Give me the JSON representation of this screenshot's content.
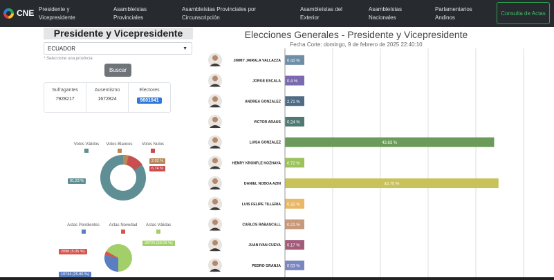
{
  "nav": {
    "logo": "CNE",
    "items": [
      {
        "label": "Presidente y Vicepresidente"
      },
      {
        "label": "Asambleístas Provinciales"
      },
      {
        "label": "Asambleístas Provinciales por Circunscripción"
      },
      {
        "label": "Asambleístas del Exterior"
      },
      {
        "label": "Asambleístas Nacionales"
      },
      {
        "label": "Parlamentarios Andinos"
      }
    ],
    "button": "Consulta de Actas"
  },
  "panel": {
    "title": "Presidente y Vicepresidente",
    "select_value": "ECUADOR",
    "hint": "* Seleccione una provincia",
    "search_label": "Buscar",
    "stats": {
      "sufragantes_label": "Sufragantes",
      "sufragantes": "7928217",
      "ausentismo_label": "Ausentismo",
      "ausentismo": "1672824",
      "electores_label": "Electores",
      "electores": "9601041"
    }
  },
  "donut": {
    "legend": [
      {
        "label": "Votos Válidos",
        "color": "#5f8f94"
      },
      {
        "label": "Votos Blancos",
        "color": "#b8875a"
      },
      {
        "label": "Votos Nulos",
        "color": "#c94f4f"
      }
    ],
    "labels": {
      "validos": "91.23 %",
      "blancos": "2.03 %",
      "nulos": "6.74 %"
    },
    "values": [
      91.23,
      2.03,
      6.74
    ]
  },
  "actas_pie": {
    "legend": [
      {
        "label": "Actas Pendientes",
        "color": "#5b7dc2"
      },
      {
        "label": "Actas Novedad",
        "color": "#d9534f"
      },
      {
        "label": "Actas Válidas",
        "color": "#a3cf6b"
      }
    ],
    "labels": {
      "pendientes": "10744 (25.86 %)",
      "novedad": "2098 (5.05 %)",
      "validas": "28720 (69.09 %)"
    },
    "values": [
      25.86,
      5.05,
      69.09
    ]
  },
  "chart": {
    "title": "Elecciones Generales - Presidente y Vicepresidente",
    "subtitle": "Fecha Corte: domingo, 9 de febrero de 2025 22:40:10"
  },
  "chart_data": {
    "type": "bar",
    "title": "Elecciones Generales - Presidente y Vicepresidente",
    "categories": [
      "JIMMY JAIRALA VALLAZZA",
      "JORGE ESCALA",
      "ANDREA GONZALEZ",
      "VICTOR ARAUS",
      "LUISA GONZALEZ",
      "HENRY KRONFLE KOZHAYA",
      "DANIEL NOBOA AZIN",
      "LUIS FELIPE TILLERIA",
      "CARLOS RABASCALL",
      "JUAN IVAN CUEVA",
      "PEDRO GRANJA"
    ],
    "values": [
      0.42,
      0.4,
      2.71,
      0.24,
      43.83,
      0.72,
      44.75,
      0.32,
      0.21,
      0.17,
      0.53
    ],
    "labels": [
      "0.42 %",
      "0.4 %",
      "2.71 %",
      "0.24 %",
      "43.83 %",
      "0.72 %",
      "44.75 %",
      "0.32 %",
      "0.21 %",
      "0.17 %",
      "0.53 %"
    ],
    "colors": [
      "#6f8fa8",
      "#7a6bb0",
      "#4f6b85",
      "#4f7a73",
      "#6b9a5a",
      "#9bc35a",
      "#c9c25a",
      "#e8b866",
      "#c99a7a",
      "#a25c7a",
      "#7a86c0"
    ],
    "xlim": [
      0,
      50
    ],
    "grid": true
  }
}
